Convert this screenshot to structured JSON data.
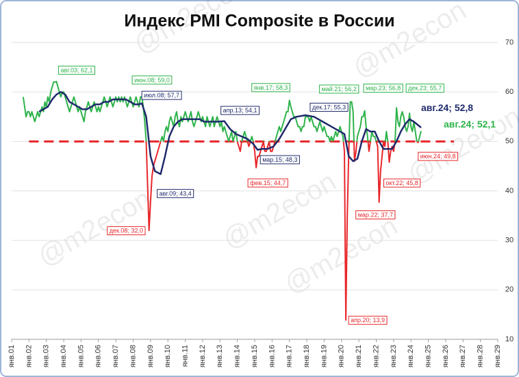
{
  "chart_data": {
    "type": "line",
    "title": "Индекс PMI Composite в России",
    "watermark": "@m2econ",
    "threshold": 50,
    "threshold_color": "#e8262a",
    "below_color": "#e8262a",
    "grid": true,
    "ylim": [
      10,
      70
    ],
    "yticks": [
      10,
      20,
      30,
      40,
      50,
      60,
      70
    ],
    "xlim": [
      "2001-01",
      "2029-01"
    ],
    "xticks": [
      {
        "value": "2001-01",
        "label": "янв.01"
      },
      {
        "value": "2002-01",
        "label": "янв.02"
      },
      {
        "value": "2003-01",
        "label": "янв.03"
      },
      {
        "value": "2004-01",
        "label": "янв.04"
      },
      {
        "value": "2005-01",
        "label": "янв.05"
      },
      {
        "value": "2006-01",
        "label": "янв.06"
      },
      {
        "value": "2007-01",
        "label": "янв.07"
      },
      {
        "value": "2008-01",
        "label": "янв.08"
      },
      {
        "value": "2009-01",
        "label": "янв.09"
      },
      {
        "value": "2010-01",
        "label": "янв.10"
      },
      {
        "value": "2011-01",
        "label": "янв.11"
      },
      {
        "value": "2012-01",
        "label": "янв.12"
      },
      {
        "value": "2013-01",
        "label": "янв.13"
      },
      {
        "value": "2014-01",
        "label": "янв.14"
      },
      {
        "value": "2015-01",
        "label": "янв.15"
      },
      {
        "value": "2016-01",
        "label": "янв.16"
      },
      {
        "value": "2017-01",
        "label": "янв.17"
      },
      {
        "value": "2018-01",
        "label": "янв.18"
      },
      {
        "value": "2019-01",
        "label": "янв.19"
      },
      {
        "value": "2020-01",
        "label": "янв.20"
      },
      {
        "value": "2021-01",
        "label": "янв.21"
      },
      {
        "value": "2022-01",
        "label": "янв.22"
      },
      {
        "value": "2023-01",
        "label": "янв.23"
      },
      {
        "value": "2024-01",
        "label": "янв.24"
      },
      {
        "value": "2025-01",
        "label": "янв.25"
      },
      {
        "value": "2026-01",
        "label": "янв.26"
      },
      {
        "value": "2027-01",
        "label": "янв.27"
      },
      {
        "value": "2028-01",
        "label": "янв.28"
      },
      {
        "value": "2029-01",
        "label": "янв.29"
      }
    ],
    "series": [
      {
        "color": "#2db34a",
        "width": 2,
        "x": [
          "2001-09",
          "2001-10",
          "2001-11",
          "2001-12",
          "2002-01",
          "2002-02",
          "2002-03",
          "2002-04",
          "2002-05",
          "2002-06",
          "2002-07",
          "2002-08",
          "2002-09",
          "2002-10",
          "2002-11",
          "2002-12",
          "2003-01",
          "2003-02",
          "2003-03",
          "2003-04",
          "2003-05",
          "2003-06",
          "2003-07",
          "2003-08",
          "2003-09",
          "2003-10",
          "2003-11",
          "2003-12",
          "2004-01",
          "2004-02",
          "2004-03",
          "2004-04",
          "2004-05",
          "2004-06",
          "2004-07",
          "2004-08",
          "2004-09",
          "2004-10",
          "2004-11",
          "2004-12",
          "2005-01",
          "2005-02",
          "2005-03",
          "2005-04",
          "2005-05",
          "2005-06",
          "2005-07",
          "2005-08",
          "2005-09",
          "2005-10",
          "2005-11",
          "2005-12",
          "2006-01",
          "2006-02",
          "2006-03",
          "2006-04",
          "2006-05",
          "2006-06",
          "2006-07",
          "2006-08",
          "2006-09",
          "2006-10",
          "2006-11",
          "2006-12",
          "2007-01",
          "2007-02",
          "2007-03",
          "2007-04",
          "2007-05",
          "2007-06",
          "2007-07",
          "2007-08",
          "2007-09",
          "2007-10",
          "2007-11",
          "2007-12",
          "2008-01",
          "2008-02",
          "2008-03",
          "2008-04",
          "2008-05",
          "2008-06",
          "2008-07",
          "2008-08",
          "2008-09",
          "2008-10",
          "2008-11",
          "2008-12",
          "2009-01",
          "2009-02",
          "2009-03",
          "2009-04",
          "2009-05",
          "2009-06",
          "2009-07",
          "2009-08",
          "2009-09",
          "2009-10",
          "2009-11",
          "2009-12",
          "2010-01",
          "2010-02",
          "2010-03",
          "2010-04",
          "2010-05",
          "2010-06",
          "2010-07",
          "2010-08",
          "2010-09",
          "2010-10",
          "2010-11",
          "2010-12",
          "2011-01",
          "2011-02",
          "2011-03",
          "2011-04",
          "2011-05",
          "2011-06",
          "2011-07",
          "2011-08",
          "2011-09",
          "2011-10",
          "2011-11",
          "2011-12",
          "2012-01",
          "2012-02",
          "2012-03",
          "2012-04",
          "2012-05",
          "2012-06",
          "2012-07",
          "2012-08",
          "2012-09",
          "2012-10",
          "2012-11",
          "2012-12",
          "2013-01",
          "2013-02",
          "2013-03",
          "2013-04",
          "2013-05",
          "2013-06",
          "2013-07",
          "2013-08",
          "2013-09",
          "2013-10",
          "2013-11",
          "2013-12",
          "2014-01",
          "2014-02",
          "2014-03",
          "2014-04",
          "2014-05",
          "2014-06",
          "2014-07",
          "2014-08",
          "2014-09",
          "2014-10",
          "2014-11",
          "2014-12",
          "2015-01",
          "2015-02",
          "2015-03",
          "2015-04",
          "2015-05",
          "2015-06",
          "2015-07",
          "2015-08",
          "2015-09",
          "2015-10",
          "2015-11",
          "2015-12",
          "2016-01",
          "2016-02",
          "2016-03",
          "2016-04",
          "2016-05",
          "2016-06",
          "2016-07",
          "2016-08",
          "2016-09",
          "2016-10",
          "2016-11",
          "2016-12",
          "2017-01",
          "2017-02",
          "2017-03",
          "2017-04",
          "2017-05",
          "2017-06",
          "2017-07",
          "2017-08",
          "2017-09",
          "2017-10",
          "2017-11",
          "2017-12",
          "2018-01",
          "2018-02",
          "2018-03",
          "2018-04",
          "2018-05",
          "2018-06",
          "2018-07",
          "2018-08",
          "2018-09",
          "2018-10",
          "2018-11",
          "2018-12",
          "2019-01",
          "2019-02",
          "2019-03",
          "2019-04",
          "2019-05",
          "2019-06",
          "2019-07",
          "2019-08",
          "2019-09",
          "2019-10",
          "2019-11",
          "2019-12",
          "2020-01",
          "2020-02",
          "2020-03",
          "2020-04",
          "2020-05",
          "2020-06",
          "2020-07",
          "2020-08",
          "2020-09",
          "2020-10",
          "2020-11",
          "2020-12",
          "2021-01",
          "2021-02",
          "2021-03",
          "2021-04",
          "2021-05",
          "2021-06",
          "2021-07",
          "2021-08",
          "2021-09",
          "2021-10",
          "2021-11",
          "2021-12",
          "2022-01",
          "2022-02",
          "2022-03",
          "2022-04",
          "2022-05",
          "2022-06",
          "2022-07",
          "2022-08",
          "2022-09",
          "2022-10",
          "2022-11",
          "2022-12",
          "2023-01",
          "2023-02",
          "2023-03",
          "2023-04",
          "2023-05",
          "2023-06",
          "2023-07",
          "2023-08",
          "2023-09",
          "2023-10",
          "2023-11",
          "2023-12",
          "2024-01",
          "2024-02",
          "2024-03",
          "2024-04",
          "2024-05",
          "2024-06",
          "2024-07",
          "2024-08"
        ],
        "values": [
          59,
          57,
          55,
          56,
          56,
          55,
          56,
          55,
          54,
          55,
          56,
          55,
          56,
          57,
          56,
          58,
          57,
          59,
          58,
          60,
          61,
          62,
          62,
          62.1,
          61,
          60,
          59,
          60,
          60,
          59,
          58,
          57,
          56,
          57,
          58,
          59,
          58,
          57,
          56,
          57,
          56,
          55,
          54,
          56,
          57,
          58,
          57,
          56,
          57,
          58,
          57,
          56,
          57,
          56,
          57,
          58,
          59,
          58,
          57,
          58,
          59,
          58,
          57,
          58,
          59,
          58,
          59,
          58,
          59,
          58,
          59,
          58,
          57,
          58,
          59,
          58,
          57,
          58,
          59,
          58,
          57,
          59,
          59,
          57,
          54,
          50,
          41,
          32,
          38,
          43,
          45,
          46,
          47,
          48,
          49,
          50,
          51,
          50,
          52,
          53,
          52,
          54,
          55,
          54,
          53,
          55,
          56,
          54,
          53,
          55,
          54,
          55,
          56,
          55,
          54,
          55,
          56,
          54,
          53,
          54,
          55,
          56,
          55,
          54,
          55,
          54,
          53,
          55,
          54,
          53,
          54,
          55,
          53,
          54,
          55,
          54,
          53,
          54,
          52,
          53,
          52,
          51,
          50,
          51,
          52,
          50,
          51,
          52,
          50,
          49,
          48,
          50,
          51,
          52,
          51,
          50,
          49,
          50,
          51,
          50,
          48,
          44.7,
          47,
          47,
          48,
          49,
          50,
          48,
          48,
          49,
          50,
          48,
          48,
          49,
          50,
          51,
          52,
          53,
          52,
          53,
          54,
          55,
          56,
          56,
          58.3,
          57,
          56,
          55,
          55,
          54,
          53,
          53,
          52,
          53,
          53,
          55,
          55,
          55,
          54,
          55,
          54,
          53,
          53,
          52,
          53,
          54,
          53,
          52,
          53,
          52,
          51,
          51,
          50,
          51,
          50,
          51,
          52,
          51,
          52,
          53,
          52,
          51,
          48,
          13.9,
          35,
          48,
          58,
          58,
          56,
          46,
          48,
          51,
          52,
          53,
          55,
          55,
          56.2,
          53,
          51,
          48,
          50,
          52,
          51,
          51,
          50,
          49,
          37.7,
          44,
          47,
          50,
          49,
          52,
          50,
          45.8,
          48,
          49,
          48,
          50,
          56.8,
          54,
          53,
          55,
          56,
          55,
          53,
          52,
          53,
          55.7,
          53,
          52,
          54,
          52,
          50,
          49.8,
          51,
          52.1
        ]
      },
      {
        "color": "#1f2a6b",
        "width": 2.5,
        "x": [
          "2002-08",
          "2002-11",
          "2003-02",
          "2003-05",
          "2003-08",
          "2003-11",
          "2004-02",
          "2004-05",
          "2004-08",
          "2004-11",
          "2005-02",
          "2005-05",
          "2005-08",
          "2005-11",
          "2006-02",
          "2006-05",
          "2006-08",
          "2006-11",
          "2007-02",
          "2007-05",
          "2007-08",
          "2007-11",
          "2008-02",
          "2008-05",
          "2008-07",
          "2008-10",
          "2009-01",
          "2009-04",
          "2009-08",
          "2009-11",
          "2010-02",
          "2010-05",
          "2010-08",
          "2010-11",
          "2011-02",
          "2011-05",
          "2011-08",
          "2011-11",
          "2012-02",
          "2012-05",
          "2012-08",
          "2012-11",
          "2013-04",
          "2013-08",
          "2013-12",
          "2014-04",
          "2014-08",
          "2014-12",
          "2015-03",
          "2015-06",
          "2015-10",
          "2016-02",
          "2016-06",
          "2016-10",
          "2017-02",
          "2017-06",
          "2017-12",
          "2018-06",
          "2018-12",
          "2019-06",
          "2019-12",
          "2020-03",
          "2020-06",
          "2020-09",
          "2020-12",
          "2021-03",
          "2021-06",
          "2021-09",
          "2021-12",
          "2022-03",
          "2022-06",
          "2022-09",
          "2022-12",
          "2023-03",
          "2023-06",
          "2023-09",
          "2023-12",
          "2024-03",
          "2024-08"
        ],
        "values": [
          56,
          56.5,
          57,
          58.5,
          59.5,
          60,
          59.5,
          58,
          57.5,
          57,
          56.5,
          56.5,
          57,
          57.5,
          57.5,
          58,
          58,
          58.5,
          58.5,
          58.5,
          58.5,
          58,
          57.5,
          57.5,
          57.7,
          55,
          47,
          44,
          43.4,
          47,
          51,
          53,
          54,
          54.5,
          54.5,
          54.5,
          54.5,
          54.5,
          54,
          54,
          54,
          54,
          54.1,
          52.5,
          51.5,
          51,
          50.5,
          49.5,
          48.3,
          48.5,
          48.5,
          49,
          50.5,
          52.5,
          54.5,
          55,
          55.3,
          55,
          54,
          53,
          52,
          51.5,
          47,
          46,
          46.5,
          50,
          52.5,
          52,
          52,
          50,
          48.5,
          48.5,
          48.5,
          50,
          52,
          53.5,
          54.5,
          54,
          52.8
        ]
      }
    ],
    "annotations": [
      {
        "text": "авг.03; 62,1",
        "x": "2003-08",
        "y": 62.1,
        "color": "#2db34a"
      },
      {
        "text": "июн.08; 59,0",
        "x": "2008-06",
        "y": 59,
        "color": "#2db34a"
      },
      {
        "text": "июл.08; 57,7",
        "x": "2008-07",
        "y": 57.7,
        "color": "#1f2a6b"
      },
      {
        "text": "дек.08; 32,0",
        "x": "2008-12",
        "y": 32,
        "color": "#e8262a"
      },
      {
        "text": "авг.09; 43,4",
        "x": "2009-08",
        "y": 43.4,
        "color": "#1f2a6b"
      },
      {
        "text": "апр.13; 54,1",
        "x": "2013-04",
        "y": 54.1,
        "color": "#1f2a6b"
      },
      {
        "text": "мар.15; 48,3",
        "x": "2015-03",
        "y": 48.3,
        "color": "#1f2a6b"
      },
      {
        "text": "фев.15; 44,7",
        "x": "2015-02",
        "y": 44.7,
        "color": "#e8262a"
      },
      {
        "text": "янв.17; 58,3",
        "x": "2017-01",
        "y": 58.3,
        "color": "#2db34a"
      },
      {
        "text": "дек.17; 55,3",
        "x": "2017-12",
        "y": 55.3,
        "color": "#1f2a6b"
      },
      {
        "text": "май.21; 56,2",
        "x": "2021-05",
        "y": 56.2,
        "color": "#2db34a"
      },
      {
        "text": "апр.20; 13,9",
        "x": "2020-04",
        "y": 13.9,
        "color": "#e8262a"
      },
      {
        "text": "мар.23; 56,8",
        "x": "2023-03",
        "y": 56.8,
        "color": "#2db34a"
      },
      {
        "text": "дек.23; 55,7",
        "x": "2023-12",
        "y": 55.7,
        "color": "#2db34a"
      },
      {
        "text": "мар.22; 37,7",
        "x": "2022-03",
        "y": 37.7,
        "color": "#e8262a"
      },
      {
        "text": "окт.22; 45,8",
        "x": "2022-10",
        "y": 45.8,
        "color": "#e8262a"
      },
      {
        "text": "июн.24; 49,8",
        "x": "2024-06",
        "y": 49.8,
        "color": "#e8262a"
      },
      {
        "text": "авг.24; 52,8",
        "x": "2024-08",
        "y": 52.8,
        "color": "#1f2a6b",
        "emphasis": true
      },
      {
        "text": "авг.24; 52,1",
        "x": "2024-08",
        "y": 52.1,
        "color": "#2db34a",
        "emphasis": true
      }
    ]
  }
}
